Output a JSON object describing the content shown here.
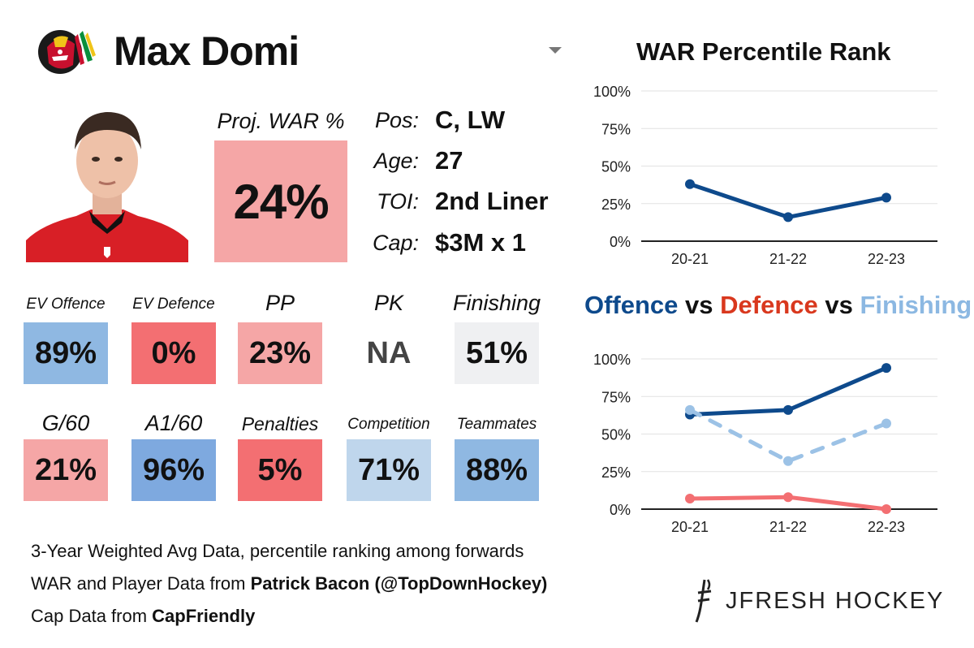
{
  "header": {
    "player_name": "Max Domi"
  },
  "war": {
    "label": "Proj. WAR %",
    "value": "24%",
    "color": "#f5a6a6"
  },
  "info": [
    {
      "label": "Pos:",
      "value": "C, LW"
    },
    {
      "label": "Age:",
      "value": "27"
    },
    {
      "label": "TOI:",
      "value": "2nd Liner"
    },
    {
      "label": "Cap:",
      "value": "$3M x 1"
    }
  ],
  "tiles_row1": [
    {
      "label": "EV Offence",
      "value": "89%",
      "color": "#8fb8e2"
    },
    {
      "label": "EV Defence",
      "value": "0%",
      "color": "#f36f72"
    },
    {
      "label": "PP",
      "value": "23%",
      "color": "#f5a6a6"
    },
    {
      "label": "PK",
      "value": "NA",
      "color": "#ffffff"
    },
    {
      "label": "Finishing",
      "value": "51%",
      "color": "#eff0f2"
    }
  ],
  "tiles_row2": [
    {
      "label": "G/60",
      "value": "21%",
      "color": "#f5a6a6"
    },
    {
      "label": "A1/60",
      "value": "96%",
      "color": "#7ea9df"
    },
    {
      "label": "Penalties",
      "value": "5%",
      "color": "#f36f72"
    },
    {
      "label": "Competition",
      "value": "71%",
      "color": "#bfd6ec"
    },
    {
      "label": "Teammates",
      "value": "88%",
      "color": "#8fb8e2"
    }
  ],
  "footnotes": {
    "line1": "3-Year Weighted Avg Data, percentile ranking among forwards",
    "line2_prefix": "WAR and Player Data from ",
    "line2_bold": "Patrick Bacon (@TopDownHockey)",
    "line3_prefix": "Cap Data from ",
    "line3_bold": "CapFriendly"
  },
  "brand": {
    "name": "JFRESH HOCKEY"
  },
  "titles": {
    "war_chart": "WAR Percentile Rank",
    "ovd_offence": "Offence",
    "ovd_vs1": " vs ",
    "ovd_defence": "Defence",
    "ovd_vs2": " vs ",
    "ovd_finishing": "Finishing"
  },
  "chart_data": [
    {
      "type": "line",
      "title": "WAR Percentile Rank",
      "categories": [
        "20-21",
        "21-22",
        "22-23"
      ],
      "yticks": [
        "0%",
        "25%",
        "50%",
        "75%",
        "100%"
      ],
      "ylim": [
        0,
        100
      ],
      "series": [
        {
          "name": "WAR",
          "values": [
            38,
            16,
            29
          ],
          "color": "#0e4a8c",
          "dashed": false
        }
      ]
    },
    {
      "type": "line",
      "title": "Offence vs Defence vs Finishing",
      "categories": [
        "20-21",
        "21-22",
        "22-23"
      ],
      "yticks": [
        "0%",
        "25%",
        "50%",
        "75%",
        "100%"
      ],
      "ylim": [
        0,
        100
      ],
      "series": [
        {
          "name": "Offence",
          "values": [
            63,
            66,
            94
          ],
          "color": "#0e4a8c",
          "dashed": false
        },
        {
          "name": "Defence",
          "values": [
            7,
            8,
            0
          ],
          "color": "#f36f72",
          "dashed": false
        },
        {
          "name": "Finishing",
          "values": [
            66,
            32,
            57
          ],
          "color": "#9cc2e6",
          "dashed": true
        }
      ]
    }
  ]
}
